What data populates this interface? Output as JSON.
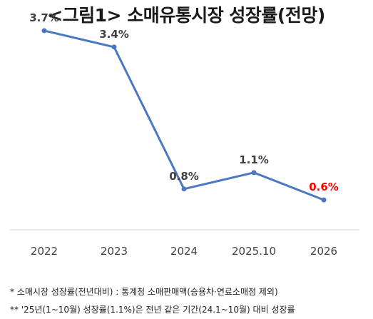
{
  "title": "<그림1> 소매유통시장 성장률(전망)",
  "chart_data": {
    "type": "line",
    "categories": [
      "2022",
      "2023",
      "2024",
      "2025.10",
      "2026"
    ],
    "values": [
      3.7,
      3.4,
      0.8,
      1.1,
      0.6
    ],
    "data_labels": [
      "3.7%",
      "3.4%",
      "0.8%",
      "1.1%",
      "0.6%"
    ],
    "label_colors": [
      "#404040",
      "#404040",
      "#404040",
      "#404040",
      "#ff0000"
    ],
    "line_color": "#4a78c2",
    "ylim": [
      0,
      4
    ],
    "grid": false
  },
  "notes": [
    "* 소매시장 성장률(전년대비) : 통계청 소매판매액(승용차·연료소매점 제외)",
    "** '25년(1~10월) 성장률(1.1%)은 전년 같은 기간(24.1~10월) 대비 성장률"
  ]
}
